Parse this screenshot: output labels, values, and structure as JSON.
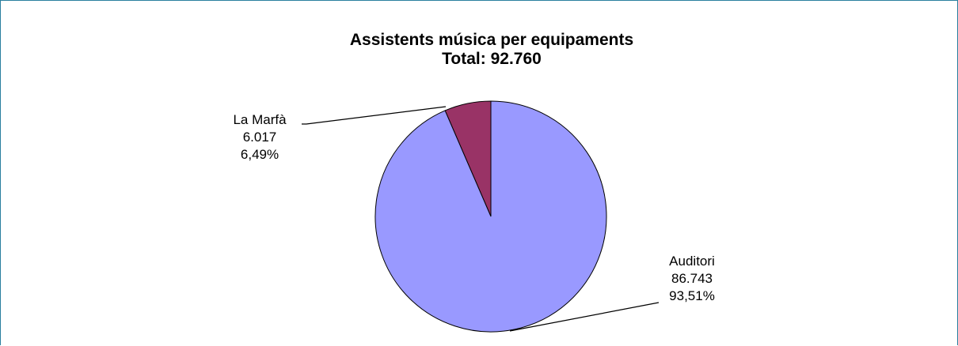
{
  "chart_data": {
    "type": "pie",
    "title": "Assistents música per equipaments",
    "subtitle": "Total: 92.760",
    "slices": [
      {
        "label": "La Marfà",
        "value": 6017,
        "value_text": "6.017",
        "percent_text": "6,49%",
        "color": "#993366"
      },
      {
        "label": "Auditori",
        "value": 86743,
        "value_text": "86.743",
        "percent_text": "93,51%",
        "color": "#9999ff"
      }
    ],
    "legend": "none"
  },
  "colors": {
    "frame_border": "#2a7f9f",
    "slice_outline": "#000000",
    "leader_line": "#000000"
  }
}
